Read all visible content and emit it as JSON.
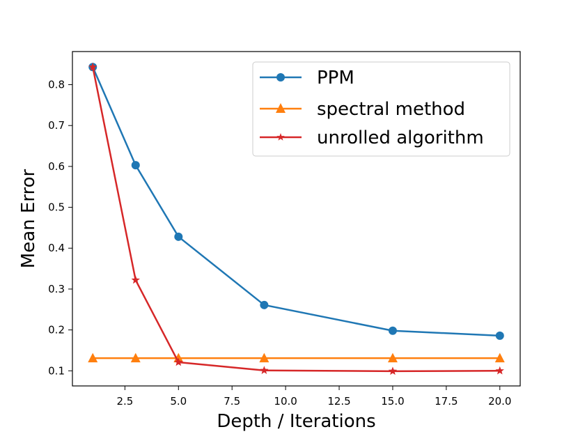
{
  "chart_data": {
    "type": "line",
    "title": "",
    "xlabel": "Depth / Iterations",
    "ylabel": "Mean Error",
    "xlim": [
      0.05,
      20.95
    ],
    "ylim": [
      0.063,
      0.881
    ],
    "xticks": [
      2.5,
      5.0,
      7.5,
      10.0,
      12.5,
      15.0,
      17.5,
      20.0
    ],
    "xtick_labels": [
      "2.5",
      "5.0",
      "7.5",
      "10.0",
      "12.5",
      "15.0",
      "17.5",
      "20.0"
    ],
    "yticks": [
      0.1,
      0.2,
      0.3,
      0.4,
      0.5,
      0.6,
      0.7,
      0.8
    ],
    "ytick_labels": [
      "0.1",
      "0.2",
      "0.3",
      "0.4",
      "0.5",
      "0.6",
      "0.7",
      "0.8"
    ],
    "grid": false,
    "legend_position": "top-right",
    "x": [
      1,
      3,
      5,
      9,
      15,
      20
    ],
    "series": [
      {
        "name": "PPM",
        "color": "#1f77b4",
        "marker": "circle",
        "values": [
          0.843,
          0.603,
          0.428,
          0.261,
          0.198,
          0.186
        ]
      },
      {
        "name": "spectral method",
        "color": "#ff7f0e",
        "marker": "triangle",
        "values": [
          0.131,
          0.131,
          0.131,
          0.131,
          0.131,
          0.131
        ]
      },
      {
        "name": "unrolled algorithm",
        "color": "#d62728",
        "marker": "star",
        "values": [
          0.843,
          0.322,
          0.121,
          0.101,
          0.099,
          0.1
        ]
      }
    ]
  }
}
